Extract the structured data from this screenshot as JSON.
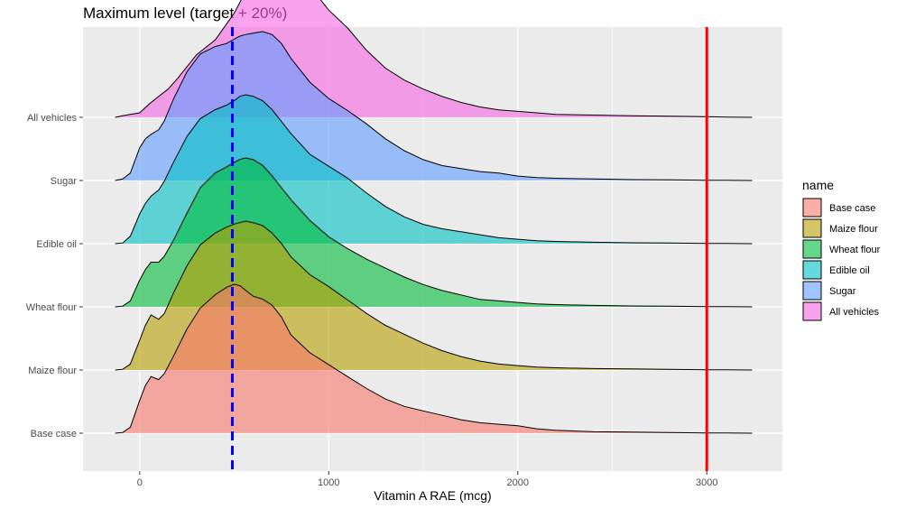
{
  "chart_data": {
    "type": "area",
    "subtype": "ridgeline-density",
    "title": "Maximum level (target + 20%)",
    "xlabel": "Vitamin A RAE (mcg)",
    "ylabel": "",
    "xlim": [
      -300,
      3400
    ],
    "xticks": [
      0,
      1000,
      2000,
      3000
    ],
    "xtick_labels": [
      "0",
      "1000",
      "2000",
      "3000"
    ],
    "x_minor_ticks": [
      500,
      1500,
      2500
    ],
    "grid": true,
    "reference_lines": [
      {
        "x": 490,
        "color": "#0000ff",
        "style": "dashed"
      },
      {
        "x": 3000,
        "color": "#ff0000",
        "style": "solid"
      }
    ],
    "legend": {
      "title": "name",
      "position": "right",
      "entries": [
        "Base case",
        "Maize flour",
        "Wheat flour",
        "Edible oil",
        "Sugar",
        "All vehicles"
      ]
    },
    "categories": [
      "Base case",
      "Maize flour",
      "Wheat flour",
      "Edible oil",
      "Sugar",
      "All vehicles"
    ],
    "series": [
      {
        "name": "Base case",
        "color": "#F8766D",
        "x": [
          -130,
          -90,
          -50,
          0,
          30,
          60,
          100,
          130,
          180,
          250,
          320,
          400,
          460,
          500,
          530,
          560,
          600,
          650,
          700,
          750,
          800,
          900,
          1000,
          1100,
          1200,
          1300,
          1400,
          1500,
          1600,
          1700,
          1800,
          1900,
          2000,
          2100,
          2200,
          2400,
          2600,
          2800,
          3000,
          3100,
          3240
        ],
        "y": [
          0,
          0.005,
          0.04,
          0.22,
          0.32,
          0.38,
          0.36,
          0.4,
          0.52,
          0.7,
          0.84,
          0.93,
          0.98,
          1.0,
          0.99,
          0.96,
          0.92,
          0.9,
          0.86,
          0.78,
          0.66,
          0.54,
          0.46,
          0.38,
          0.3,
          0.23,
          0.18,
          0.15,
          0.12,
          0.09,
          0.07,
          0.06,
          0.05,
          0.03,
          0.02,
          0.01,
          0.007,
          0.004,
          0.002,
          0.001,
          0
        ]
      },
      {
        "name": "Maize flour",
        "color": "#B79F00",
        "x": [
          -130,
          -90,
          -50,
          0,
          30,
          60,
          100,
          130,
          180,
          250,
          320,
          400,
          460,
          500,
          530,
          560,
          600,
          650,
          700,
          750,
          800,
          900,
          1000,
          1100,
          1200,
          1300,
          1400,
          1500,
          1600,
          1700,
          1800,
          1900,
          2000,
          2100,
          2200,
          2400,
          2600,
          2800,
          3000,
          3100,
          3240
        ],
        "y": [
          0,
          0.005,
          0.04,
          0.2,
          0.3,
          0.37,
          0.34,
          0.38,
          0.52,
          0.7,
          0.84,
          0.92,
          0.96,
          0.98,
          0.99,
          1.0,
          0.99,
          0.97,
          0.92,
          0.85,
          0.76,
          0.64,
          0.56,
          0.47,
          0.38,
          0.3,
          0.24,
          0.18,
          0.13,
          0.09,
          0.06,
          0.04,
          0.03,
          0.02,
          0.015,
          0.01,
          0.007,
          0.004,
          0.002,
          0.001,
          0
        ]
      },
      {
        "name": "Wheat flour",
        "color": "#00BA38",
        "x": [
          -130,
          -90,
          -50,
          0,
          30,
          60,
          100,
          130,
          180,
          250,
          320,
          400,
          460,
          500,
          530,
          560,
          600,
          650,
          700,
          750,
          800,
          900,
          1000,
          1100,
          1200,
          1300,
          1400,
          1500,
          1600,
          1700,
          1800,
          1900,
          2000,
          2100,
          2200,
          2400,
          2600,
          2800,
          3000,
          3100,
          3240
        ],
        "y": [
          0,
          0.005,
          0.04,
          0.18,
          0.25,
          0.3,
          0.3,
          0.34,
          0.45,
          0.63,
          0.8,
          0.9,
          0.94,
          0.97,
          0.99,
          1.0,
          0.99,
          0.95,
          0.88,
          0.8,
          0.72,
          0.58,
          0.47,
          0.39,
          0.32,
          0.26,
          0.2,
          0.15,
          0.11,
          0.08,
          0.05,
          0.04,
          0.03,
          0.02,
          0.015,
          0.01,
          0.006,
          0.004,
          0.002,
          0.001,
          0
        ]
      },
      {
        "name": "Edible oil",
        "color": "#00BFC4",
        "x": [
          -130,
          -90,
          -50,
          0,
          30,
          60,
          100,
          130,
          180,
          250,
          320,
          400,
          460,
          500,
          530,
          560,
          600,
          650,
          700,
          750,
          800,
          900,
          1000,
          1100,
          1200,
          1300,
          1400,
          1500,
          1600,
          1700,
          1800,
          1900,
          2000,
          2100,
          2200,
          2400,
          2600,
          2800,
          3000,
          3100,
          3240
        ],
        "y": [
          0,
          0.005,
          0.05,
          0.2,
          0.27,
          0.32,
          0.36,
          0.42,
          0.55,
          0.72,
          0.84,
          0.9,
          0.93,
          0.96,
          0.99,
          1.0,
          0.99,
          0.96,
          0.9,
          0.82,
          0.74,
          0.6,
          0.52,
          0.44,
          0.34,
          0.25,
          0.18,
          0.13,
          0.1,
          0.08,
          0.06,
          0.04,
          0.03,
          0.02,
          0.015,
          0.01,
          0.006,
          0.004,
          0.002,
          0.001,
          0
        ]
      },
      {
        "name": "Sugar",
        "color": "#619CFF",
        "x": [
          -130,
          -90,
          -50,
          0,
          30,
          60,
          100,
          130,
          180,
          250,
          320,
          400,
          460,
          500,
          530,
          560,
          600,
          650,
          700,
          750,
          800,
          900,
          1000,
          1100,
          1200,
          1300,
          1400,
          1500,
          1600,
          1700,
          1800,
          1900,
          2000,
          2100,
          2200,
          2400,
          2600,
          2800,
          3000,
          3100,
          3240
        ],
        "y": [
          0,
          0.01,
          0.05,
          0.22,
          0.28,
          0.31,
          0.34,
          0.4,
          0.55,
          0.73,
          0.85,
          0.9,
          0.92,
          0.95,
          0.97,
          0.98,
          0.99,
          1.0,
          0.98,
          0.92,
          0.82,
          0.66,
          0.55,
          0.47,
          0.38,
          0.28,
          0.2,
          0.14,
          0.1,
          0.08,
          0.06,
          0.05,
          0.03,
          0.02,
          0.015,
          0.01,
          0.006,
          0.004,
          0.002,
          0.001,
          0
        ]
      },
      {
        "name": "All vehicles",
        "color": "#F564E3",
        "x": [
          -130,
          -90,
          -50,
          0,
          50,
          100,
          150,
          200,
          300,
          400,
          500,
          550,
          600,
          650,
          700,
          750,
          800,
          850,
          900,
          950,
          1000,
          1100,
          1200,
          1300,
          1400,
          1500,
          1600,
          1700,
          1800,
          1900,
          2000,
          2100,
          2200,
          2400,
          2600,
          2800,
          3000,
          3100,
          3240
        ],
        "y": [
          0,
          0.01,
          0.02,
          0.03,
          0.09,
          0.14,
          0.19,
          0.26,
          0.42,
          0.52,
          0.7,
          0.82,
          0.92,
          0.98,
          1.0,
          1.0,
          0.98,
          0.92,
          0.86,
          0.8,
          0.72,
          0.6,
          0.45,
          0.33,
          0.25,
          0.19,
          0.14,
          0.1,
          0.07,
          0.05,
          0.04,
          0.03,
          0.02,
          0.015,
          0.01,
          0.007,
          0.004,
          0.002,
          0
        ]
      }
    ]
  }
}
